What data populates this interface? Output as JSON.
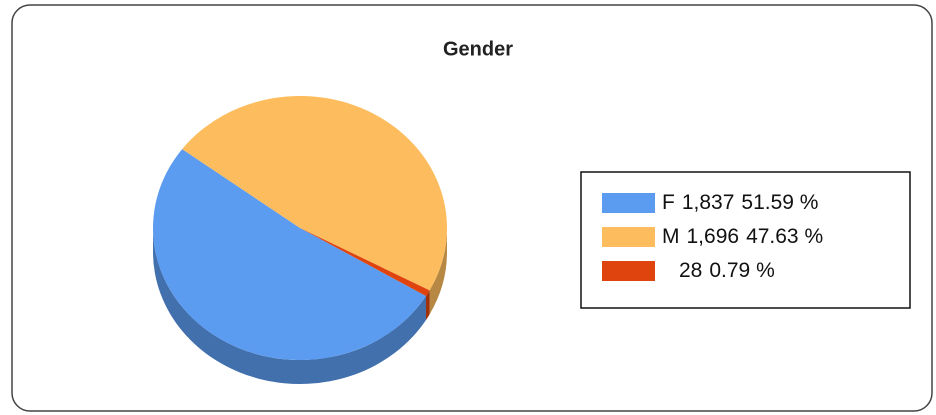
{
  "chart_data": {
    "type": "pie",
    "title": "Gender",
    "categories": [
      "F",
      "M",
      null
    ],
    "values": [
      1837,
      1696,
      28
    ],
    "value_labels": [
      "1,837",
      "1,696",
      "28"
    ],
    "percentages": [
      51.59,
      47.63,
      0.79
    ],
    "percentage_labels": [
      "51.59 %",
      "47.63 %",
      "0.79 %"
    ],
    "colors": [
      "#5b9bf0",
      "#fdbd5e",
      "#e0440e"
    ],
    "legend": "right"
  }
}
